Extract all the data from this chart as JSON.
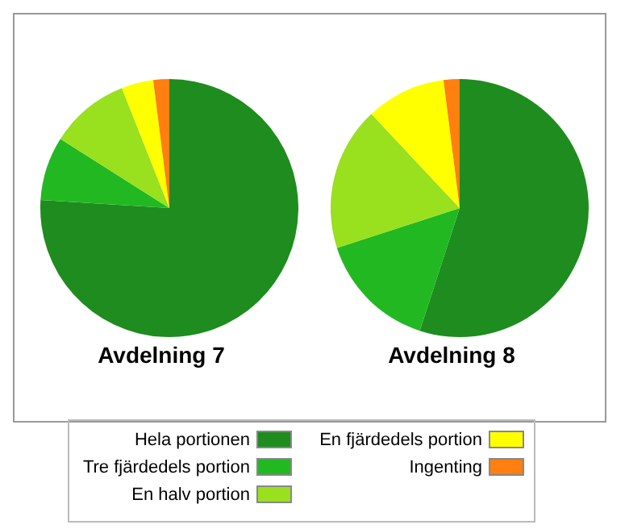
{
  "chart_data": [
    {
      "type": "pie",
      "title": "Avdelning 7",
      "categories": [
        "Hela portionen",
        "Tre fjärdedels portion",
        "En halv portion",
        "En fjärdedels portion",
        "Ingenting"
      ],
      "values": [
        76,
        8,
        10,
        4,
        2
      ],
      "colors": [
        "#1e8c1e",
        "#22b822",
        "#99e01e",
        "#ffff00",
        "#ff7f0f"
      ],
      "legend": "bottom"
    },
    {
      "type": "pie",
      "title": "Avdelning 8",
      "categories": [
        null,
        null,
        null,
        null,
        null
      ],
      "values": [
        55,
        15,
        18,
        10,
        2
      ],
      "colors": [
        "#1e8c1e",
        "#22b822",
        "#99e01e",
        "#ffff00",
        "#ff7f0f"
      ]
    }
  ]
}
